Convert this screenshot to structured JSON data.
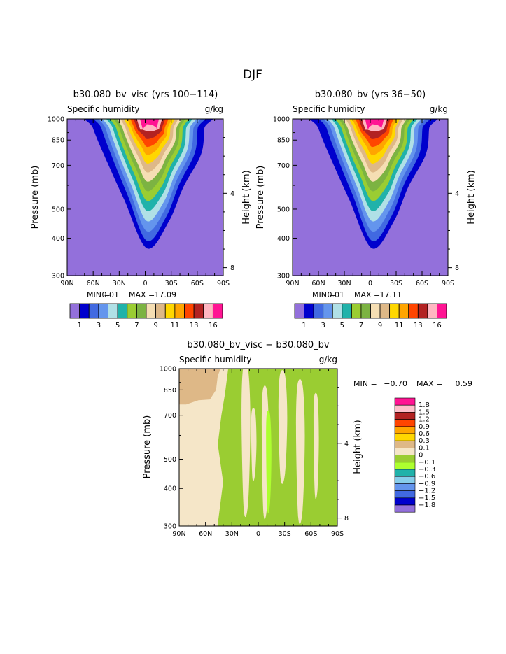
{
  "figure": {
    "season": "DJF"
  },
  "colors": {
    "background": "#9370db",
    "levels": [
      "#9370db",
      "#0000cd",
      "#4169e1",
      "#6495ed",
      "#b0e0e6",
      "#20b2aa",
      "#9acd32",
      "#7cb342",
      "#f5deb3",
      "#deb887",
      "#ffd700",
      "#ffa500",
      "#ff4500",
      "#b22222",
      "#ffb6c1",
      "#ff1493"
    ],
    "diff_levels": [
      "#9370db",
      "#0000cd",
      "#4169e1",
      "#6495ed",
      "#87ceeb",
      "#20b2aa",
      "#adff2f",
      "#9acd32",
      "#f5e6c8",
      "#deb887",
      "#ffd700",
      "#ffa500",
      "#ff4500",
      "#b22222",
      "#ffc0cb",
      "#ff1493"
    ]
  },
  "panels": [
    {
      "title": "b30.080_bv_visc (yrs 100−114)",
      "variable": "Specific humidity",
      "units": "g/kg",
      "left_axis_label": "Pressure (mb)",
      "right_axis_label": "Height (km)",
      "stats": {
        "min_label": "MIN =",
        "min": "0.01",
        "max_label": "MAX =",
        "max": "17.09"
      }
    },
    {
      "title": "b30.080_bv (yrs 36−50)",
      "variable": "Specific humidity",
      "units": "g/kg",
      "left_axis_label": "Pressure (mb)",
      "right_axis_label": "Height (km)",
      "stats": {
        "min_label": "MIN =",
        "min": "0.01",
        "max_label": "MAX =",
        "max": "17.11"
      }
    },
    {
      "title": "b30.080_bv_visc − b30.080_bv",
      "variable": "Specific humidity",
      "units": "g/kg",
      "left_axis_label": "Pressure (mb)",
      "right_axis_label": "Height (km)",
      "stats": {
        "min_label": "MIN =",
        "min": "−0.70",
        "max_label": "MAX =",
        "max": "0.59"
      }
    }
  ],
  "chart_data": [
    {
      "type": "heatmap",
      "title": "b30.080_bv_visc (yrs 100−114)",
      "xlabel": "",
      "ylabel": "Pressure (mb)",
      "y2label": "Height (km)",
      "x_ticks": [
        "90N",
        "60N",
        "30N",
        "0",
        "30S",
        "60S",
        "90S"
      ],
      "y_ticks": [
        "300",
        "400",
        "500",
        "700",
        "850",
        "1000"
      ],
      "y2_ticks": [
        "8",
        "4"
      ],
      "xlim": [
        90,
        -90
      ],
      "ylim": [
        1000,
        300
      ],
      "min": 0.01,
      "max": 17.09,
      "contour_levels": [
        1,
        2,
        3,
        4,
        5,
        6,
        7,
        8,
        9,
        10,
        11,
        12,
        13,
        14,
        16
      ],
      "colorbar_labels": [
        "1",
        "3",
        "5",
        "7",
        "9",
        "11",
        "13",
        "16"
      ],
      "plume": {
        "peak_latitude": -5,
        "peak_value": 17.09,
        "moist_top_mb": 370
      }
    },
    {
      "type": "heatmap",
      "title": "b30.080_bv (yrs 36−50)",
      "xlabel": "",
      "ylabel": "Pressure (mb)",
      "y2label": "Height (km)",
      "x_ticks": [
        "90N",
        "60N",
        "30N",
        "0",
        "30S",
        "60S",
        "90S"
      ],
      "y_ticks": [
        "300",
        "400",
        "500",
        "700",
        "850",
        "1000"
      ],
      "y2_ticks": [
        "8",
        "4"
      ],
      "xlim": [
        90,
        -90
      ],
      "ylim": [
        1000,
        300
      ],
      "min": 0.01,
      "max": 17.11,
      "contour_levels": [
        1,
        2,
        3,
        4,
        5,
        6,
        7,
        8,
        9,
        10,
        11,
        12,
        13,
        14,
        16
      ],
      "colorbar_labels": [
        "1",
        "3",
        "5",
        "7",
        "9",
        "11",
        "13",
        "16"
      ],
      "plume": {
        "peak_latitude": -5,
        "peak_value": 17.11,
        "moist_top_mb": 370
      }
    },
    {
      "type": "heatmap",
      "title": "b30.080_bv_visc − b30.080_bv",
      "xlabel": "",
      "ylabel": "Pressure (mb)",
      "y2label": "Height (km)",
      "x_ticks": [
        "90N",
        "60N",
        "30N",
        "0",
        "30S",
        "60S",
        "90S"
      ],
      "y_ticks": [
        "300",
        "400",
        "500",
        "700",
        "850",
        "1000"
      ],
      "y2_ticks": [
        "8",
        "4"
      ],
      "xlim": [
        90,
        -90
      ],
      "ylim": [
        1000,
        300
      ],
      "min": -0.7,
      "max": 0.59,
      "contour_levels": [
        -1.8,
        -1.5,
        -1.2,
        -0.9,
        -0.6,
        -0.3,
        -0.1,
        0,
        0.1,
        0.3,
        0.6,
        0.9,
        1.2,
        1.5,
        1.8
      ],
      "legend_labels": [
        "1.8",
        "1.5",
        "1.2",
        "0.9",
        "0.6",
        "0.3",
        "0.1",
        "0",
        "−0.1",
        "−0.3",
        "−0.6",
        "−0.9",
        "−1.2",
        "−1.5",
        "−1.8"
      ],
      "regions": [
        {
          "lat_range": [
            90,
            45
          ],
          "p_range": [
            300,
            1000
          ],
          "sign": "positive",
          "value": "0 to 0.1"
        },
        {
          "lat_range": [
            90,
            55
          ],
          "p_range": [
            780,
            1000
          ],
          "sign": "positive",
          "value": "0.1 to 0.3"
        },
        {
          "lat_range": [
            45,
            -90
          ],
          "p_range": [
            300,
            1000
          ],
          "sign": "negative",
          "value": "-0.1 to 0"
        }
      ]
    }
  ]
}
